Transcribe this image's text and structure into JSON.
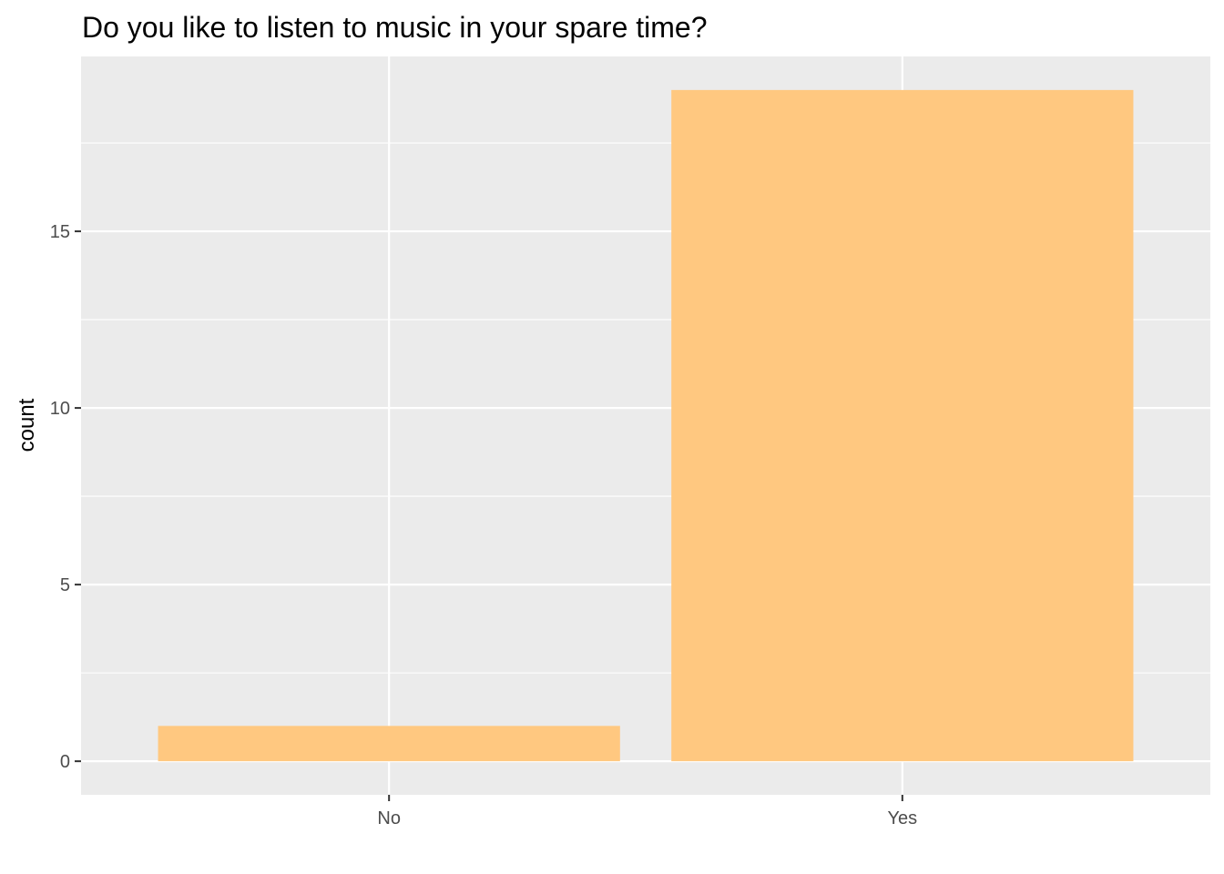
{
  "chart_data": {
    "type": "bar",
    "title": "Do you like to listen to music in your spare time?",
    "xlabel": "",
    "ylabel": "count",
    "categories": [
      "No",
      "Yes"
    ],
    "values": [
      1,
      19
    ],
    "ylim": [
      -0.95,
      19.95
    ],
    "yticks": [
      0,
      5,
      10,
      15
    ],
    "ytick_labels": [
      "0",
      "5",
      "10",
      "15"
    ],
    "grid": true,
    "legend": "none",
    "colors": {
      "bar": "#FFC880",
      "panel": "#EBEBEB",
      "grid": "#FFFFFF",
      "tick": "#333333"
    }
  }
}
